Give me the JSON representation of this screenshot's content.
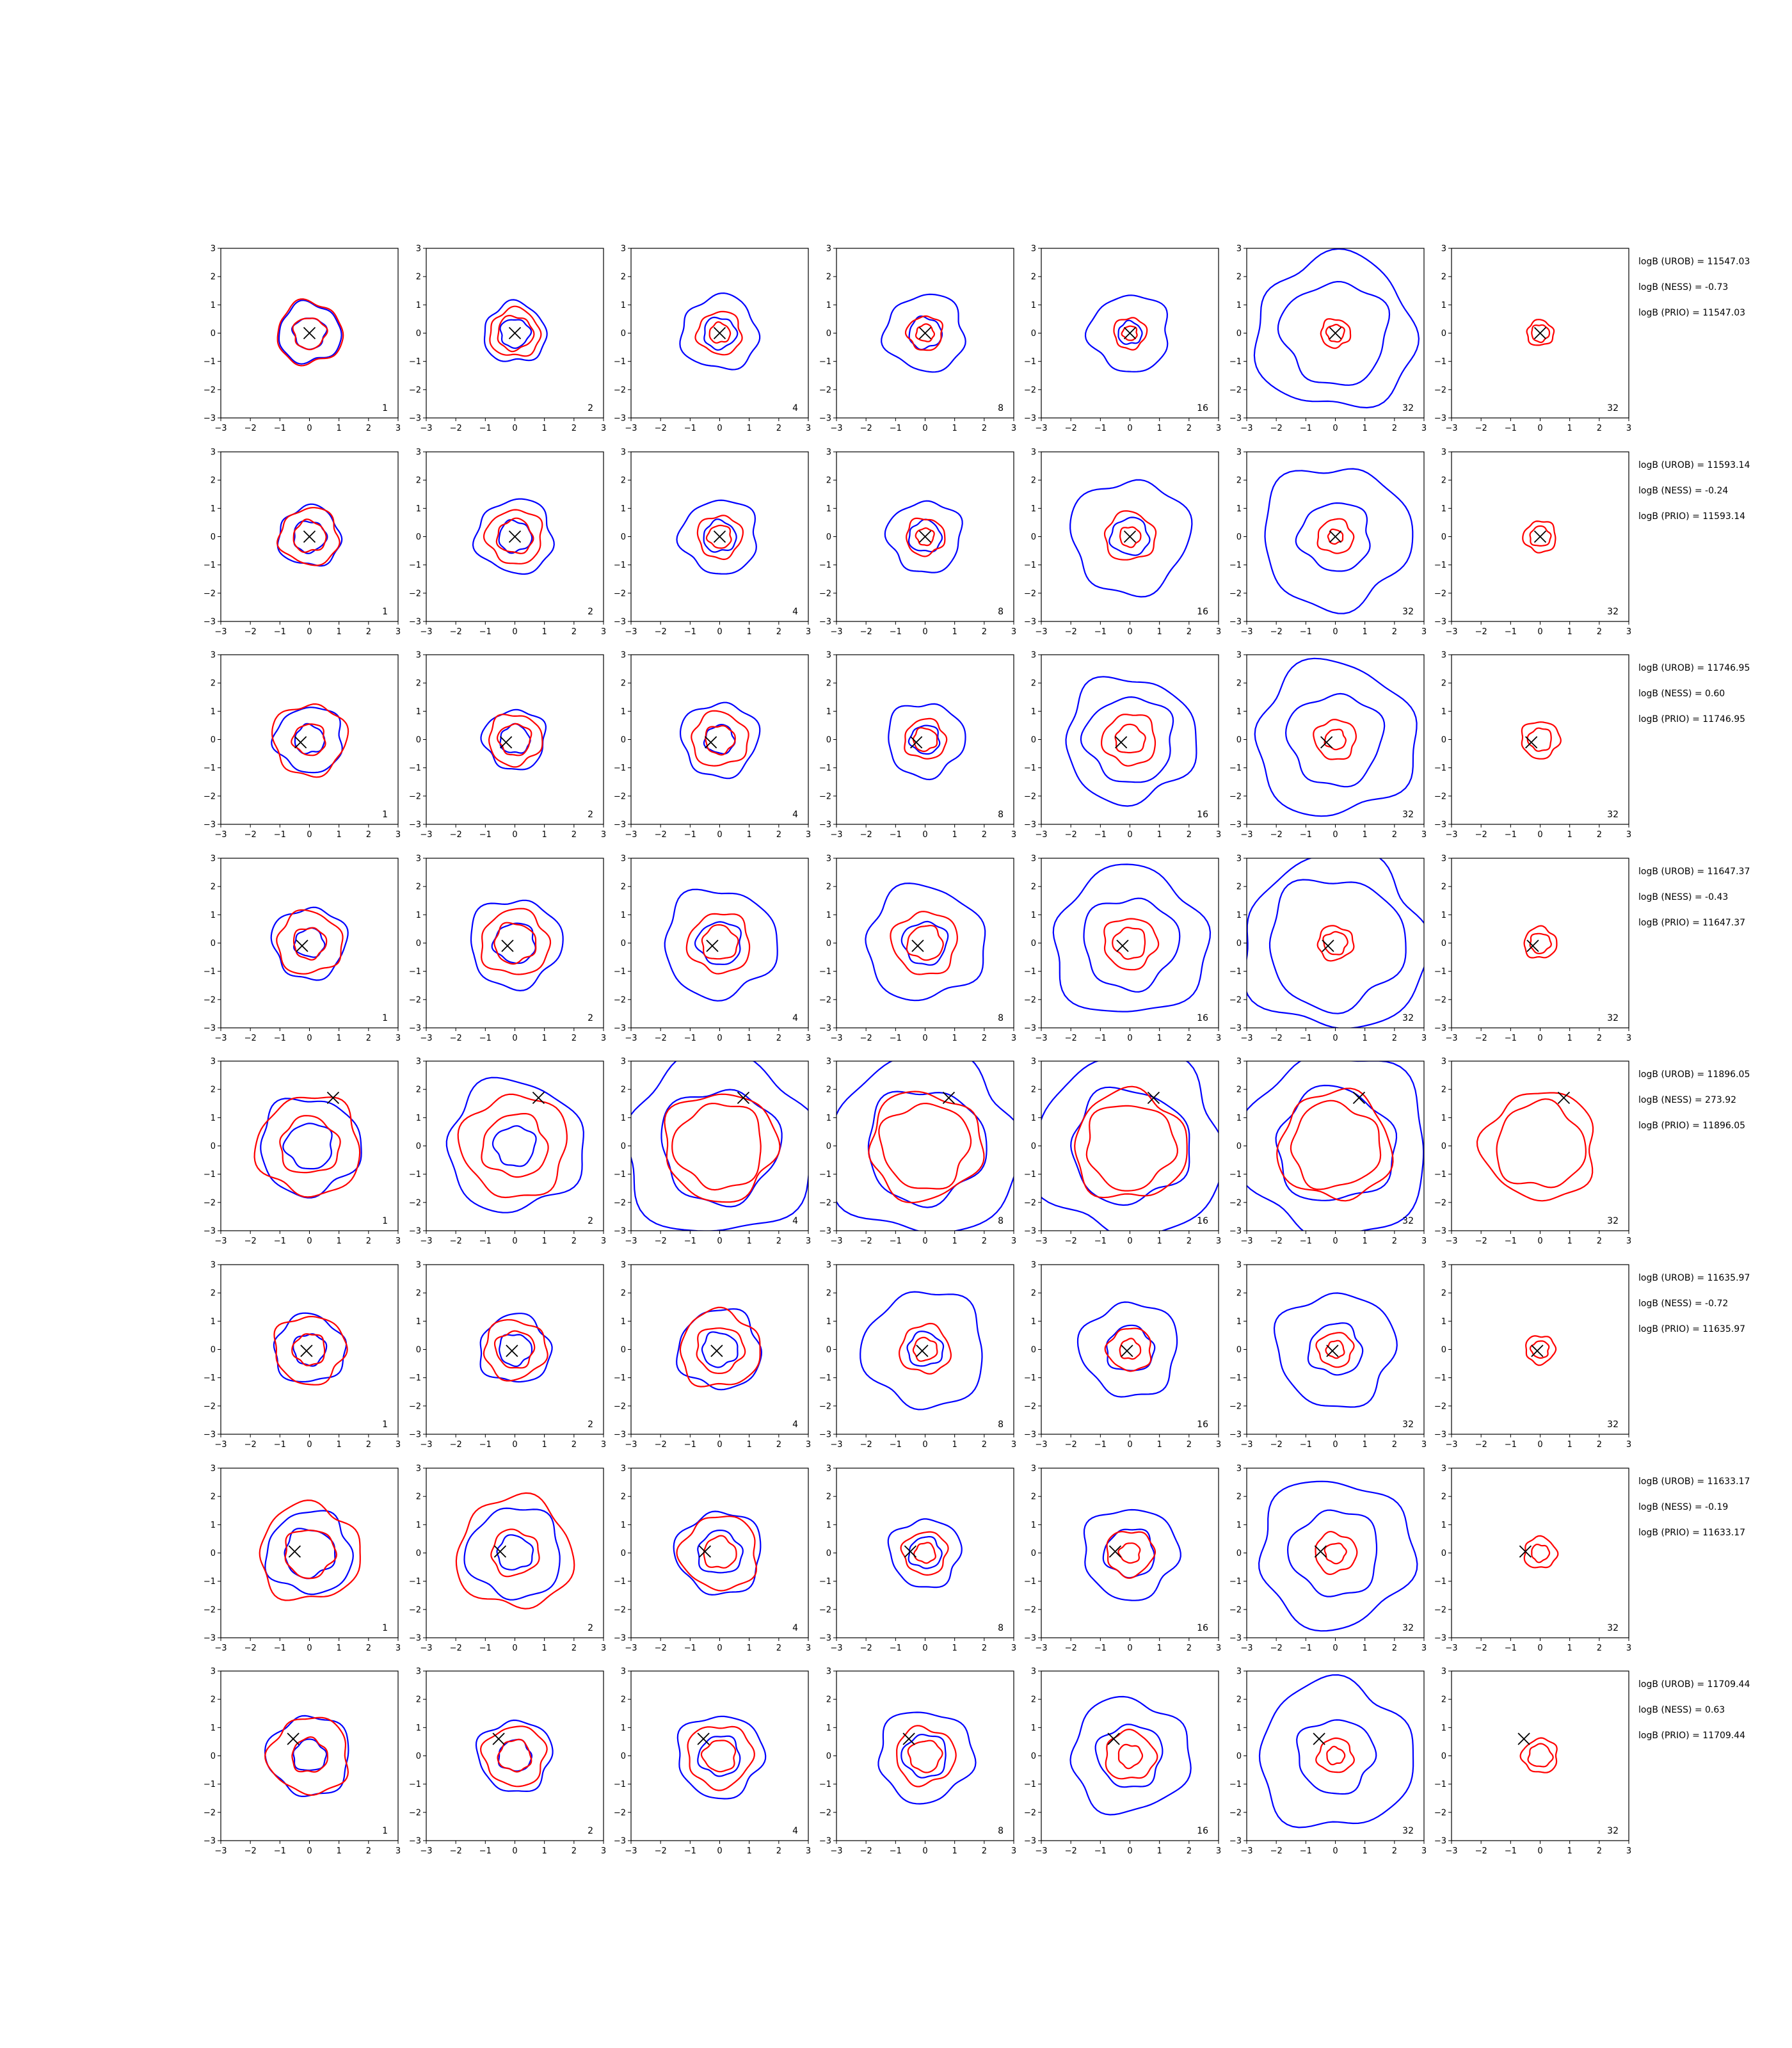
{
  "chart_data": {
    "type": "contour-grid",
    "xlim": [
      -3,
      3
    ],
    "ylim": [
      -3,
      3
    ],
    "xticks": [
      -3,
      -2,
      -1,
      0,
      1,
      2,
      3
    ],
    "yticks": [
      -3,
      -2,
      -1,
      0,
      1,
      2,
      3
    ],
    "column_annotations": [
      "1",
      "2",
      "4",
      "8",
      "16",
      "32",
      "32"
    ],
    "colors": {
      "blue": "#0000ff",
      "red": "#ff0000",
      "marker": "#000000"
    },
    "rows": [
      {
        "marker": [
          0.0,
          0.0
        ],
        "stats": [
          "logB (UROB) = 11547.03",
          "logB (NESS) = -0.73",
          "logB (PRIO) = 11547.03"
        ],
        "blue_r": [
          [
            0.55,
            1.05
          ],
          [
            0.5,
            1.05
          ],
          [
            0.55,
            1.3
          ],
          [
            0.55,
            1.35
          ],
          [
            0.4,
            1.35
          ],
          [
            2.7,
            1.8
          ],
          null
        ],
        "red_r": [
          [
            0.55,
            1.1
          ],
          [
            0.6,
            0.85
          ],
          [
            0.35,
            0.75
          ],
          [
            0.3,
            0.6
          ],
          [
            0.25,
            0.55
          ],
          [
            0.3,
            0.5
          ],
          [
            0.3,
            0.45
          ]
        ]
      },
      {
        "marker": [
          0.0,
          0.0
        ],
        "stats": [
          "logB (UROB) = 11593.14",
          "logB (NESS) = -0.24",
          "logB (PRIO) = 11593.14"
        ],
        "blue_r": [
          [
            0.55,
            1.05
          ],
          [
            0.55,
            1.3
          ],
          [
            0.55,
            1.3
          ],
          [
            0.55,
            1.25
          ],
          [
            0.65,
            2.0
          ],
          [
            1.2,
            2.5
          ],
          null
        ],
        "red_r": [
          [
            0.55,
            1.0
          ],
          [
            0.6,
            0.95
          ],
          [
            0.4,
            0.75
          ],
          [
            0.3,
            0.65
          ],
          [
            0.35,
            0.85
          ],
          [
            0.25,
            0.6
          ],
          [
            0.35,
            0.55
          ]
        ]
      },
      {
        "marker": [
          -0.3,
          -0.1
        ],
        "stats": [
          "logB (UROB) = 11746.95",
          "logB (NESS) = 0.60",
          "logB (PRIO) = 11746.95"
        ],
        "blue_r": [
          [
            0.5,
            1.15
          ],
          [
            0.5,
            1.05
          ],
          [
            0.5,
            1.3
          ],
          [
            0.5,
            1.3
          ],
          [
            1.5,
            2.2
          ],
          [
            1.6,
            2.7
          ],
          null
        ],
        "red_r": [
          [
            0.55,
            1.25
          ],
          [
            0.55,
            0.9
          ],
          [
            0.5,
            0.95
          ],
          [
            0.4,
            0.7
          ],
          [
            0.5,
            0.9
          ],
          [
            0.35,
            0.7
          ],
          [
            0.4,
            0.65
          ]
        ]
      },
      {
        "marker": [
          -0.25,
          -0.1
        ],
        "stats": [
          "logB (UROB) = 11647.37",
          "logB (NESS) = -0.43",
          "logB (PRIO) = 11647.37"
        ],
        "blue_r": [
          [
            0.5,
            1.25
          ],
          [
            0.7,
            1.55
          ],
          [
            0.75,
            1.9
          ],
          [
            0.75,
            2.0
          ],
          [
            1.6,
            2.6
          ],
          [
            2.3,
            3.1
          ],
          null
        ],
        "red_r": [
          [
            0.55,
            1.1
          ],
          [
            0.7,
            1.15
          ],
          [
            0.6,
            1.05
          ],
          [
            0.6,
            1.1
          ],
          [
            0.55,
            0.9
          ],
          [
            0.4,
            0.6
          ],
          [
            0.35,
            0.55
          ]
        ]
      },
      {
        "marker": [
          0.8,
          1.7
        ],
        "stats": [
          "logB (UROB) = 11896.05",
          "logB (NESS) = 273.92",
          "logB (PRIO) = 11896.05"
        ],
        "blue_r": [
          [
            0.8,
            1.7
          ],
          [
            0.7,
            2.3
          ],
          [
            2.0,
            3.2
          ],
          [
            2.0,
            3.2
          ],
          [
            2.0,
            3.2
          ],
          [
            2.0,
            3.2
          ],
          null
        ],
        "red_r": [
          [
            1.0,
            1.75
          ],
          [
            1.1,
            1.8
          ],
          [
            1.5,
            1.9
          ],
          [
            1.5,
            1.9
          ],
          [
            1.5,
            1.9
          ],
          [
            1.5,
            1.9
          ],
          [
            1.5,
            1.9
          ]
        ]
      },
      {
        "marker": [
          -0.1,
          -0.05
        ],
        "stats": [
          "logB (UROB) = 11635.97",
          "logB (NESS) = -0.72",
          "logB (PRIO) = 11635.97"
        ],
        "blue_r": [
          [
            0.55,
            1.2
          ],
          [
            0.55,
            1.2
          ],
          [
            0.6,
            1.4
          ],
          [
            0.6,
            2.05
          ],
          [
            0.8,
            1.65
          ],
          [
            0.9,
            2.0
          ],
          null
        ],
        "red_r": [
          [
            0.55,
            1.2
          ],
          [
            0.65,
            1.05
          ],
          [
            0.8,
            1.35
          ],
          [
            0.4,
            0.85
          ],
          [
            0.35,
            0.75
          ],
          [
            0.3,
            0.6
          ],
          [
            0.3,
            0.5
          ]
        ]
      },
      {
        "marker": [
          -0.5,
          0.05
        ],
        "stats": [
          "logB (UROB) = 11633.17",
          "logB (NESS) = -0.19",
          "logB (PRIO) = 11633.17"
        ],
        "blue_r": [
          [
            0.85,
            1.45
          ],
          [
            0.6,
            1.6
          ],
          [
            0.75,
            1.45
          ],
          [
            0.55,
            1.2
          ],
          [
            0.85,
            1.6
          ],
          [
            1.5,
            2.6
          ],
          null
        ],
        "red_r": [
          [
            0.85,
            1.7
          ],
          [
            0.8,
            1.95
          ],
          [
            0.55,
            1.3
          ],
          [
            0.35,
            0.75
          ],
          [
            0.35,
            0.8
          ],
          [
            0.35,
            0.7
          ],
          [
            0.3,
            0.55
          ]
        ]
      },
      {
        "marker": [
          -0.55,
          0.6
        ],
        "stats": [
          "logB (UROB) = 11709.44",
          "logB (NESS) = 0.63",
          "logB (PRIO) = 11709.44"
        ],
        "blue_r": [
          [
            0.55,
            1.4
          ],
          [
            0.55,
            1.25
          ],
          [
            0.7,
            1.45
          ],
          [
            0.75,
            1.6
          ],
          [
            1.1,
            2.0
          ],
          [
            1.3,
            2.6
          ],
          null
        ],
        "red_r": [
          [
            0.6,
            1.35
          ],
          [
            0.55,
            1.05
          ],
          [
            0.55,
            1.1
          ],
          [
            0.55,
            1.0
          ],
          [
            0.4,
            0.85
          ],
          [
            0.3,
            0.6
          ],
          [
            0.4,
            0.6
          ]
        ]
      }
    ]
  }
}
